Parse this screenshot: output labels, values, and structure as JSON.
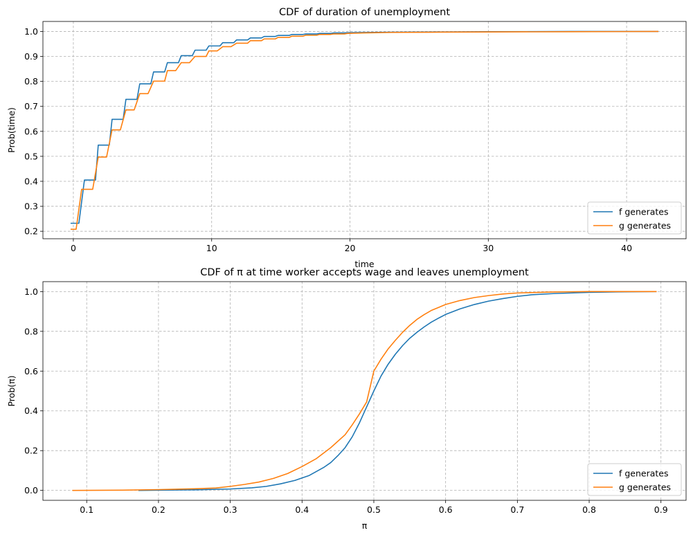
{
  "chart_data": [
    {
      "type": "line",
      "step": true,
      "title": "CDF of duration of unemployment",
      "xlabel": "time",
      "ylabel": "Prob(time)",
      "xlim": [
        -2.2,
        44.3
      ],
      "ylim": [
        0.17,
        1.04
      ],
      "xticks": [
        0,
        10,
        20,
        30,
        40
      ],
      "xtick_labels": [
        "0",
        "10",
        "20",
        "30",
        "40"
      ],
      "yticks": [
        0.2,
        0.3,
        0.4,
        0.5,
        0.6,
        0.7,
        0.8,
        0.9,
        1.0
      ],
      "ytick_labels": [
        "0.2",
        "0.3",
        "0.4",
        "0.5",
        "0.6",
        "0.7",
        "0.8",
        "0.9",
        "1.0"
      ],
      "grid": true,
      "legend_position": "lower-right",
      "series": [
        {
          "name": "f generates",
          "color": "#1f77b4",
          "points": [
            [
              -0.2,
              0.232
            ],
            [
              0.4,
              0.232
            ],
            [
              0.8,
              0.405
            ],
            [
              1.6,
              0.405
            ],
            [
              1.8,
              0.545
            ],
            [
              2.6,
              0.545
            ],
            [
              2.8,
              0.648
            ],
            [
              3.6,
              0.648
            ],
            [
              3.8,
              0.728
            ],
            [
              4.6,
              0.728
            ],
            [
              4.8,
              0.79
            ],
            [
              5.6,
              0.79
            ],
            [
              5.8,
              0.838
            ],
            [
              6.6,
              0.838
            ],
            [
              6.8,
              0.875
            ],
            [
              7.6,
              0.875
            ],
            [
              7.8,
              0.903
            ],
            [
              8.6,
              0.903
            ],
            [
              8.8,
              0.925
            ],
            [
              9.6,
              0.925
            ],
            [
              9.8,
              0.942
            ],
            [
              10.6,
              0.942
            ],
            [
              10.8,
              0.955
            ],
            [
              11.6,
              0.955
            ],
            [
              11.8,
              0.966
            ],
            [
              12.6,
              0.966
            ],
            [
              12.8,
              0.974
            ],
            [
              13.6,
              0.974
            ],
            [
              13.8,
              0.98
            ],
            [
              14.6,
              0.98
            ],
            [
              14.8,
              0.984
            ],
            [
              15.6,
              0.984
            ],
            [
              15.8,
              0.988
            ],
            [
              16.6,
              0.988
            ],
            [
              16.8,
              0.99
            ],
            [
              17.6,
              0.99
            ],
            [
              17.8,
              0.992
            ],
            [
              18.6,
              0.992
            ],
            [
              18.8,
              0.994
            ],
            [
              19.6,
              0.994
            ],
            [
              19.8,
              0.995
            ],
            [
              21,
              0.996
            ],
            [
              23,
              0.997
            ],
            [
              26,
              0.998
            ],
            [
              30,
              0.999
            ],
            [
              36,
              1.0
            ],
            [
              42.3,
              1.0
            ]
          ]
        },
        {
          "name": "g generates",
          "color": "#ff7f0e",
          "points": [
            [
              -0.2,
              0.208
            ],
            [
              0.2,
              0.208
            ],
            [
              0.6,
              0.368
            ],
            [
              1.4,
              0.368
            ],
            [
              1.8,
              0.497
            ],
            [
              2.4,
              0.497
            ],
            [
              2.8,
              0.606
            ],
            [
              3.4,
              0.606
            ],
            [
              3.8,
              0.686
            ],
            [
              4.4,
              0.686
            ],
            [
              4.8,
              0.751
            ],
            [
              5.4,
              0.751
            ],
            [
              5.8,
              0.801
            ],
            [
              6.6,
              0.801
            ],
            [
              6.8,
              0.843
            ],
            [
              7.4,
              0.843
            ],
            [
              7.8,
              0.875
            ],
            [
              8.4,
              0.875
            ],
            [
              8.8,
              0.9
            ],
            [
              9.6,
              0.9
            ],
            [
              9.8,
              0.922
            ],
            [
              10.4,
              0.922
            ],
            [
              10.8,
              0.939
            ],
            [
              11.4,
              0.939
            ],
            [
              11.8,
              0.953
            ],
            [
              12.6,
              0.953
            ],
            [
              12.8,
              0.963
            ],
            [
              13.6,
              0.963
            ],
            [
              13.8,
              0.97
            ],
            [
              14.6,
              0.97
            ],
            [
              14.8,
              0.976
            ],
            [
              15.6,
              0.976
            ],
            [
              15.8,
              0.981
            ],
            [
              16.6,
              0.981
            ],
            [
              16.8,
              0.985
            ],
            [
              17.6,
              0.985
            ],
            [
              17.8,
              0.988
            ],
            [
              18.6,
              0.988
            ],
            [
              18.8,
              0.99
            ],
            [
              19.6,
              0.99
            ],
            [
              19.8,
              0.992
            ],
            [
              21,
              0.994
            ],
            [
              23,
              0.996
            ],
            [
              26,
              0.997
            ],
            [
              30,
              0.998
            ],
            [
              36,
              0.999
            ],
            [
              42.3,
              1.0
            ]
          ]
        }
      ]
    },
    {
      "type": "line",
      "title": "CDF of π at time worker accepts wage and leaves unemployment",
      "xlabel": "π",
      "ylabel": "Prob(π)",
      "xlim": [
        0.039,
        0.935
      ],
      "ylim": [
        -0.05,
        1.05
      ],
      "xticks": [
        0.1,
        0.2,
        0.3,
        0.4,
        0.5,
        0.6,
        0.7,
        0.8,
        0.9
      ],
      "xtick_labels": [
        "0.1",
        "0.2",
        "0.3",
        "0.4",
        "0.5",
        "0.6",
        "0.7",
        "0.8",
        "0.9"
      ],
      "yticks": [
        0.0,
        0.2,
        0.4,
        0.6,
        0.8,
        1.0
      ],
      "ytick_labels": [
        "0.0",
        "0.2",
        "0.4",
        "0.6",
        "0.8",
        "1.0"
      ],
      "grid": true,
      "legend_position": "lower-right",
      "series": [
        {
          "name": "f generates",
          "color": "#1f77b4",
          "points": [
            [
              0.172,
              0.0
            ],
            [
              0.2,
              0.001
            ],
            [
              0.25,
              0.003
            ],
            [
              0.3,
              0.007
            ],
            [
              0.33,
              0.013
            ],
            [
              0.35,
              0.02
            ],
            [
              0.37,
              0.033
            ],
            [
              0.39,
              0.05
            ],
            [
              0.41,
              0.075
            ],
            [
              0.43,
              0.115
            ],
            [
              0.44,
              0.14
            ],
            [
              0.45,
              0.175
            ],
            [
              0.46,
              0.215
            ],
            [
              0.47,
              0.27
            ],
            [
              0.48,
              0.34
            ],
            [
              0.49,
              0.42
            ],
            [
              0.5,
              0.5
            ],
            [
              0.51,
              0.575
            ],
            [
              0.52,
              0.635
            ],
            [
              0.53,
              0.685
            ],
            [
              0.54,
              0.728
            ],
            [
              0.55,
              0.765
            ],
            [
              0.56,
              0.795
            ],
            [
              0.57,
              0.822
            ],
            [
              0.58,
              0.846
            ],
            [
              0.59,
              0.866
            ],
            [
              0.6,
              0.885
            ],
            [
              0.62,
              0.913
            ],
            [
              0.64,
              0.935
            ],
            [
              0.66,
              0.952
            ],
            [
              0.68,
              0.965
            ],
            [
              0.7,
              0.976
            ],
            [
              0.72,
              0.984
            ],
            [
              0.75,
              0.99
            ],
            [
              0.8,
              0.996
            ],
            [
              0.85,
              0.999
            ],
            [
              0.894,
              1.0
            ]
          ]
        },
        {
          "name": "g generates",
          "color": "#ff7f0e",
          "points": [
            [
              0.08,
              0.0
            ],
            [
              0.15,
              0.001
            ],
            [
              0.2,
              0.004
            ],
            [
              0.25,
              0.008
            ],
            [
              0.28,
              0.012
            ],
            [
              0.3,
              0.02
            ],
            [
              0.32,
              0.03
            ],
            [
              0.34,
              0.042
            ],
            [
              0.36,
              0.06
            ],
            [
              0.38,
              0.085
            ],
            [
              0.4,
              0.12
            ],
            [
              0.42,
              0.16
            ],
            [
              0.44,
              0.215
            ],
            [
              0.46,
              0.28
            ],
            [
              0.47,
              0.33
            ],
            [
              0.48,
              0.385
            ],
            [
              0.49,
              0.445
            ],
            [
              0.5,
              0.6
            ],
            [
              0.51,
              0.66
            ],
            [
              0.52,
              0.712
            ],
            [
              0.53,
              0.755
            ],
            [
              0.54,
              0.795
            ],
            [
              0.55,
              0.83
            ],
            [
              0.56,
              0.86
            ],
            [
              0.57,
              0.884
            ],
            [
              0.58,
              0.905
            ],
            [
              0.6,
              0.935
            ],
            [
              0.62,
              0.955
            ],
            [
              0.64,
              0.97
            ],
            [
              0.66,
              0.98
            ],
            [
              0.68,
              0.988
            ],
            [
              0.7,
              0.993
            ],
            [
              0.75,
              0.998
            ],
            [
              0.8,
              1.0
            ],
            [
              0.894,
              1.0
            ]
          ]
        }
      ]
    }
  ]
}
